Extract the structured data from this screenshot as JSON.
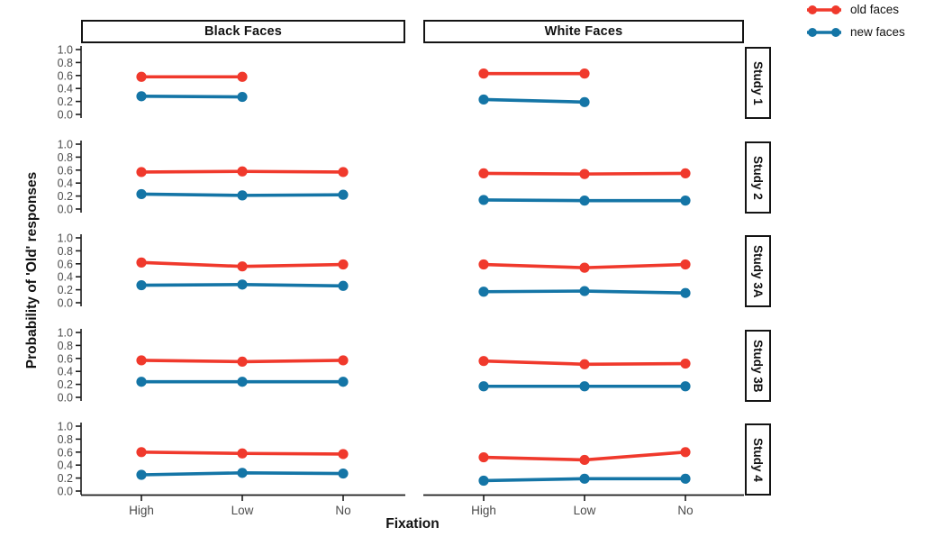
{
  "figure": {
    "background": "#ffffff",
    "axis_line_color": "#1c1c1c",
    "tick_label_color": "#4b4b4b"
  },
  "legend": {
    "items": [
      {
        "label": "old faces",
        "color": "#F0392C"
      },
      {
        "label": "new faces",
        "color": "#1475A6"
      }
    ]
  },
  "axes": {
    "y_label": "Probability of 'Old' responses",
    "x_label": "Fixation",
    "y_tick_labels": [
      "1.0",
      "0.8",
      "0.6",
      "0.4",
      "0.2",
      "0.0"
    ],
    "x_tick_labels": [
      "High",
      "Low",
      "No"
    ]
  },
  "chart_data": {
    "type": "line",
    "title": "",
    "xlabel": "Fixation",
    "ylabel": "Probability of 'Old' responses",
    "x_categories": [
      "High",
      "Low",
      "No"
    ],
    "ylim": [
      0.0,
      1.0
    ],
    "y_ticks": [
      1.0,
      0.8,
      0.6,
      0.4,
      0.2,
      0.0
    ],
    "grid": "off",
    "legend_position": "top-right",
    "facet_columns": [
      "Black Faces",
      "White Faces"
    ],
    "facet_rows": [
      "Study 1",
      "Study 2",
      "Study 3A",
      "Study 3B",
      "Study 4"
    ],
    "series_colors": {
      "old faces": "#F0392C",
      "new faces": "#1475A6"
    },
    "panels": [
      {
        "row": "Study 1",
        "column": "Black Faces",
        "x": [
          "High",
          "Low"
        ],
        "series": [
          {
            "name": "old faces",
            "values": [
              0.58,
              0.58
            ]
          },
          {
            "name": "new faces",
            "values": [
              0.28,
              0.27
            ]
          }
        ]
      },
      {
        "row": "Study 1",
        "column": "White Faces",
        "x": [
          "High",
          "Low"
        ],
        "series": [
          {
            "name": "old faces",
            "values": [
              0.63,
              0.63
            ]
          },
          {
            "name": "new faces",
            "values": [
              0.23,
              0.19
            ]
          }
        ]
      },
      {
        "row": "Study 2",
        "column": "Black Faces",
        "x": [
          "High",
          "Low",
          "No"
        ],
        "series": [
          {
            "name": "old faces",
            "values": [
              0.57,
              0.58,
              0.57
            ]
          },
          {
            "name": "new faces",
            "values": [
              0.23,
              0.21,
              0.22
            ]
          }
        ]
      },
      {
        "row": "Study 2",
        "column": "White Faces",
        "x": [
          "High",
          "Low",
          "No"
        ],
        "series": [
          {
            "name": "old faces",
            "values": [
              0.55,
              0.54,
              0.55
            ]
          },
          {
            "name": "new faces",
            "values": [
              0.14,
              0.13,
              0.13
            ]
          }
        ]
      },
      {
        "row": "Study 3A",
        "column": "Black Faces",
        "x": [
          "High",
          "Low",
          "No"
        ],
        "series": [
          {
            "name": "old faces",
            "values": [
              0.62,
              0.56,
              0.59
            ]
          },
          {
            "name": "new faces",
            "values": [
              0.27,
              0.28,
              0.26
            ]
          }
        ]
      },
      {
        "row": "Study 3A",
        "column": "White Faces",
        "x": [
          "High",
          "Low",
          "No"
        ],
        "series": [
          {
            "name": "old faces",
            "values": [
              0.59,
              0.54,
              0.59
            ]
          },
          {
            "name": "new faces",
            "values": [
              0.17,
              0.18,
              0.15
            ]
          }
        ]
      },
      {
        "row": "Study 3B",
        "column": "Black Faces",
        "x": [
          "High",
          "Low",
          "No"
        ],
        "series": [
          {
            "name": "old faces",
            "values": [
              0.57,
              0.55,
              0.57
            ]
          },
          {
            "name": "new faces",
            "values": [
              0.24,
              0.24,
              0.24
            ]
          }
        ]
      },
      {
        "row": "Study 3B",
        "column": "White Faces",
        "x": [
          "High",
          "Low",
          "No"
        ],
        "series": [
          {
            "name": "old faces",
            "values": [
              0.56,
              0.51,
              0.52
            ]
          },
          {
            "name": "new faces",
            "values": [
              0.17,
              0.17,
              0.17
            ]
          }
        ]
      },
      {
        "row": "Study 4",
        "column": "Black Faces",
        "x": [
          "High",
          "Low",
          "No"
        ],
        "series": [
          {
            "name": "old faces",
            "values": [
              0.6,
              0.58,
              0.57
            ]
          },
          {
            "name": "new faces",
            "values": [
              0.25,
              0.28,
              0.27
            ]
          }
        ]
      },
      {
        "row": "Study 4",
        "column": "White Faces",
        "x": [
          "High",
          "Low",
          "No"
        ],
        "series": [
          {
            "name": "old faces",
            "values": [
              0.52,
              0.48,
              0.6
            ]
          },
          {
            "name": "new faces",
            "values": [
              0.16,
              0.19,
              0.19
            ]
          }
        ]
      }
    ]
  }
}
